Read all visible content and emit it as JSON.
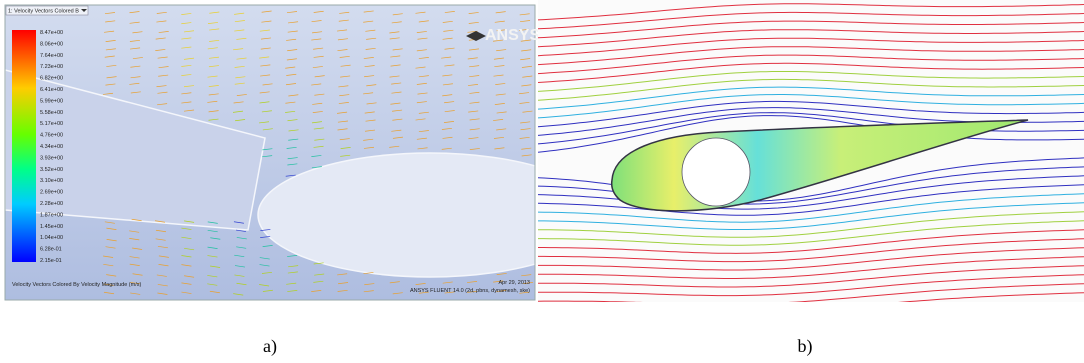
{
  "panel_a": {
    "dropdown": "1: Velocity Vectors Colored B",
    "logo": "ANSYS",
    "colorbar_labels": [
      "8.47e+00",
      "8.06e+00",
      "7.64e+00",
      "7.23e+00",
      "6.82e+00",
      "6.41e+00",
      "5.99e+00",
      "5.58e+00",
      "5.17e+00",
      "4.76e+00",
      "4.34e+00",
      "3.93e+00",
      "3.52e+00",
      "3.10e+00",
      "2.69e+00",
      "2.28e+00",
      "1.87e+00",
      "1.45e+00",
      "1.04e+00",
      "6.28e-01",
      "2.15e-01"
    ],
    "footer_left": "Velocity Vectors Colored By Velocity Magnitude (m/s)",
    "footer_date": "Apr 29, 2013",
    "footer_right": "ANSYS FLUENT 14.0 (2d, pbns, dynamesh, ske)",
    "caption": "a)"
  },
  "panel_b": {
    "caption": "b)"
  }
}
